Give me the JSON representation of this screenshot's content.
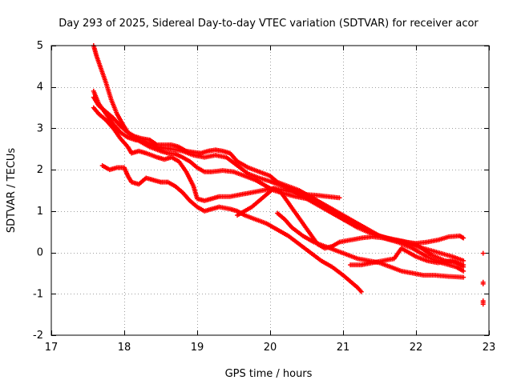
{
  "chart_data": {
    "type": "scatter",
    "title": "Day 293 of 2025, Sidereal Day-to-day VTEC variation (SDTVAR) for receiver acor",
    "xlabel": "GPS time / hours",
    "ylabel": "SDTVAR / TECUs",
    "xlim": [
      17,
      23
    ],
    "ylim": [
      -2,
      5
    ],
    "xticks": [
      17,
      18,
      19,
      20,
      21,
      22,
      23
    ],
    "yticks": [
      -2,
      -1,
      0,
      1,
      2,
      3,
      4,
      5
    ],
    "grid": true,
    "marker": "plus",
    "color": "#ff0000",
    "series": [
      {
        "name": "track-1",
        "points": [
          [
            17.58,
            5.0
          ],
          [
            17.62,
            4.75
          ],
          [
            17.68,
            4.45
          ],
          [
            17.75,
            4.1
          ],
          [
            17.82,
            3.7
          ],
          [
            17.9,
            3.35
          ],
          [
            17.98,
            3.1
          ],
          [
            18.05,
            2.9
          ],
          [
            18.15,
            2.75
          ],
          [
            18.25,
            2.65
          ],
          [
            18.35,
            2.55
          ],
          [
            18.5,
            2.45
          ],
          [
            18.6,
            2.4
          ],
          [
            18.7,
            2.38
          ],
          [
            18.8,
            2.3
          ],
          [
            18.9,
            2.2
          ],
          [
            19.0,
            2.05
          ],
          [
            19.1,
            1.95
          ],
          [
            19.2,
            1.95
          ],
          [
            19.35,
            1.98
          ],
          [
            19.5,
            1.95
          ],
          [
            19.65,
            1.85
          ],
          [
            19.8,
            1.75
          ],
          [
            19.95,
            1.6
          ],
          [
            20.05,
            1.5
          ],
          [
            20.2,
            1.42
          ],
          [
            20.35,
            1.35
          ],
          [
            20.5,
            1.3
          ],
          [
            20.7,
            1.15
          ],
          [
            20.9,
            0.95
          ],
          [
            21.1,
            0.75
          ],
          [
            21.3,
            0.55
          ],
          [
            21.5,
            0.4
          ],
          [
            21.7,
            0.3
          ],
          [
            21.9,
            0.2
          ],
          [
            22.1,
            0.1
          ],
          [
            22.3,
            0.0
          ],
          [
            22.5,
            -0.1
          ],
          [
            22.65,
            -0.2
          ]
        ]
      },
      {
        "name": "track-2",
        "points": [
          [
            17.58,
            3.9
          ],
          [
            17.65,
            3.6
          ],
          [
            17.75,
            3.35
          ],
          [
            17.85,
            3.1
          ],
          [
            17.95,
            2.9
          ],
          [
            18.05,
            2.78
          ],
          [
            18.15,
            2.72
          ],
          [
            18.25,
            2.7
          ],
          [
            18.35,
            2.62
          ],
          [
            18.45,
            2.55
          ],
          [
            18.55,
            2.52
          ],
          [
            18.65,
            2.5
          ],
          [
            18.8,
            2.45
          ],
          [
            18.95,
            2.35
          ],
          [
            19.1,
            2.3
          ],
          [
            19.25,
            2.35
          ],
          [
            19.4,
            2.3
          ],
          [
            19.55,
            2.1
          ],
          [
            19.7,
            1.9
          ],
          [
            19.85,
            1.8
          ],
          [
            20.0,
            1.72
          ],
          [
            20.1,
            1.65
          ],
          [
            20.25,
            1.55
          ],
          [
            20.4,
            1.4
          ],
          [
            20.6,
            1.2
          ],
          [
            20.8,
            1.0
          ],
          [
            21.0,
            0.8
          ],
          [
            21.2,
            0.6
          ],
          [
            21.4,
            0.45
          ],
          [
            21.6,
            0.35
          ],
          [
            21.8,
            0.28
          ],
          [
            22.0,
            0.2
          ],
          [
            22.2,
            -0.05
          ],
          [
            22.4,
            -0.2
          ],
          [
            22.55,
            -0.25
          ],
          [
            22.65,
            -0.35
          ]
        ]
      },
      {
        "name": "track-3",
        "points": [
          [
            17.58,
            3.75
          ],
          [
            17.65,
            3.55
          ],
          [
            17.75,
            3.4
          ],
          [
            17.85,
            3.25
          ],
          [
            17.95,
            3.05
          ],
          [
            18.05,
            2.9
          ],
          [
            18.15,
            2.8
          ],
          [
            18.25,
            2.75
          ],
          [
            18.35,
            2.72
          ],
          [
            18.45,
            2.6
          ],
          [
            18.55,
            2.6
          ],
          [
            18.65,
            2.6
          ],
          [
            18.75,
            2.55
          ],
          [
            18.85,
            2.45
          ],
          [
            18.95,
            2.42
          ],
          [
            19.05,
            2.4
          ],
          [
            19.15,
            2.45
          ],
          [
            19.25,
            2.48
          ],
          [
            19.35,
            2.45
          ],
          [
            19.45,
            2.4
          ],
          [
            19.55,
            2.2
          ],
          [
            19.7,
            2.05
          ],
          [
            19.85,
            1.95
          ],
          [
            20.0,
            1.85
          ],
          [
            20.1,
            1.7
          ],
          [
            20.25,
            1.6
          ],
          [
            20.4,
            1.5
          ],
          [
            20.55,
            1.35
          ],
          [
            20.75,
            1.15
          ],
          [
            20.95,
            0.95
          ],
          [
            21.15,
            0.75
          ],
          [
            21.35,
            0.55
          ],
          [
            21.55,
            0.35
          ],
          [
            21.75,
            0.25
          ],
          [
            21.95,
            0.1
          ],
          [
            22.15,
            -0.1
          ],
          [
            22.35,
            -0.25
          ],
          [
            22.55,
            -0.35
          ],
          [
            22.65,
            -0.45
          ]
        ]
      },
      {
        "name": "track-4",
        "points": [
          [
            17.58,
            3.5
          ],
          [
            17.65,
            3.35
          ],
          [
            17.75,
            3.2
          ],
          [
            17.85,
            3.0
          ],
          [
            17.95,
            2.75
          ],
          [
            18.05,
            2.55
          ],
          [
            18.1,
            2.4
          ],
          [
            18.2,
            2.45
          ],
          [
            18.3,
            2.4
          ],
          [
            18.45,
            2.3
          ],
          [
            18.55,
            2.25
          ],
          [
            18.65,
            2.3
          ],
          [
            18.75,
            2.2
          ],
          [
            18.85,
            1.95
          ],
          [
            18.95,
            1.6
          ],
          [
            19.0,
            1.3
          ],
          [
            19.1,
            1.25
          ],
          [
            19.2,
            1.3
          ],
          [
            19.3,
            1.35
          ],
          [
            19.45,
            1.35
          ],
          [
            19.6,
            1.4
          ],
          [
            19.75,
            1.45
          ],
          [
            19.9,
            1.5
          ],
          [
            20.05,
            1.55
          ],
          [
            20.2,
            1.5
          ],
          [
            20.35,
            1.45
          ],
          [
            20.5,
            1.4
          ],
          [
            20.65,
            1.38
          ],
          [
            20.8,
            1.35
          ],
          [
            20.95,
            1.32
          ]
        ]
      },
      {
        "name": "track-5",
        "points": [
          [
            17.7,
            2.1
          ],
          [
            17.8,
            2.0
          ],
          [
            17.9,
            2.05
          ],
          [
            18.0,
            2.05
          ],
          [
            18.05,
            1.85
          ],
          [
            18.1,
            1.7
          ],
          [
            18.2,
            1.65
          ],
          [
            18.3,
            1.8
          ],
          [
            18.4,
            1.75
          ],
          [
            18.5,
            1.7
          ],
          [
            18.6,
            1.7
          ],
          [
            18.7,
            1.6
          ],
          [
            18.8,
            1.45
          ],
          [
            18.9,
            1.25
          ],
          [
            19.0,
            1.1
          ],
          [
            19.1,
            1.0
          ],
          [
            19.2,
            1.05
          ],
          [
            19.3,
            1.1
          ],
          [
            19.45,
            1.05
          ],
          [
            19.55,
            1.0
          ],
          [
            19.65,
            0.9
          ],
          [
            19.8,
            0.8
          ],
          [
            19.95,
            0.7
          ],
          [
            20.1,
            0.55
          ],
          [
            20.25,
            0.4
          ],
          [
            20.4,
            0.2
          ],
          [
            20.55,
            0.0
          ],
          [
            20.7,
            -0.2
          ],
          [
            20.85,
            -0.35
          ],
          [
            21.0,
            -0.55
          ],
          [
            21.1,
            -0.7
          ],
          [
            21.2,
            -0.85
          ],
          [
            21.25,
            -0.95
          ]
        ]
      },
      {
        "name": "track-6",
        "points": [
          [
            19.55,
            0.9
          ],
          [
            19.65,
            1.0
          ],
          [
            19.75,
            1.1
          ],
          [
            19.85,
            1.25
          ],
          [
            19.95,
            1.4
          ],
          [
            20.05,
            1.55
          ],
          [
            20.15,
            1.45
          ],
          [
            20.25,
            1.2
          ],
          [
            20.35,
            0.95
          ],
          [
            20.45,
            0.7
          ],
          [
            20.55,
            0.45
          ],
          [
            20.65,
            0.2
          ],
          [
            20.75,
            0.1
          ],
          [
            20.85,
            0.15
          ],
          [
            20.95,
            0.25
          ],
          [
            21.1,
            0.3
          ],
          [
            21.25,
            0.35
          ],
          [
            21.4,
            0.38
          ],
          [
            21.55,
            0.35
          ],
          [
            21.7,
            0.3
          ],
          [
            21.85,
            0.25
          ],
          [
            22.0,
            0.22
          ],
          [
            22.15,
            0.25
          ],
          [
            22.3,
            0.3
          ],
          [
            22.45,
            0.38
          ],
          [
            22.6,
            0.4
          ],
          [
            22.65,
            0.35
          ]
        ]
      },
      {
        "name": "track-7",
        "points": [
          [
            20.1,
            0.95
          ],
          [
            20.2,
            0.8
          ],
          [
            20.3,
            0.6
          ],
          [
            20.45,
            0.4
          ],
          [
            20.6,
            0.25
          ],
          [
            20.75,
            0.15
          ],
          [
            20.9,
            0.05
          ],
          [
            21.05,
            -0.05
          ],
          [
            21.2,
            -0.15
          ],
          [
            21.35,
            -0.2
          ],
          [
            21.5,
            -0.25
          ],
          [
            21.65,
            -0.35
          ],
          [
            21.8,
            -0.45
          ],
          [
            21.95,
            -0.5
          ],
          [
            22.1,
            -0.55
          ],
          [
            22.25,
            -0.55
          ],
          [
            22.45,
            -0.58
          ],
          [
            22.65,
            -0.6
          ]
        ]
      },
      {
        "name": "track-8",
        "points": [
          [
            21.1,
            -0.3
          ],
          [
            21.25,
            -0.3
          ],
          [
            21.4,
            -0.25
          ],
          [
            21.55,
            -0.2
          ],
          [
            21.7,
            -0.15
          ],
          [
            21.8,
            0.1
          ],
          [
            21.9,
            0.0
          ],
          [
            22.0,
            -0.1
          ],
          [
            22.15,
            -0.2
          ],
          [
            22.3,
            -0.25
          ],
          [
            22.5,
            -0.2
          ],
          [
            22.65,
            -0.3
          ]
        ]
      },
      {
        "name": "track-9",
        "points": [
          [
            22.92,
            -0.02
          ]
        ]
      },
      {
        "name": "track-10",
        "points": [
          [
            22.92,
            -0.72
          ],
          [
            22.92,
            -0.76
          ]
        ]
      },
      {
        "name": "track-11",
        "points": [
          [
            22.92,
            -1.17
          ],
          [
            22.92,
            -1.25
          ]
        ]
      }
    ]
  }
}
